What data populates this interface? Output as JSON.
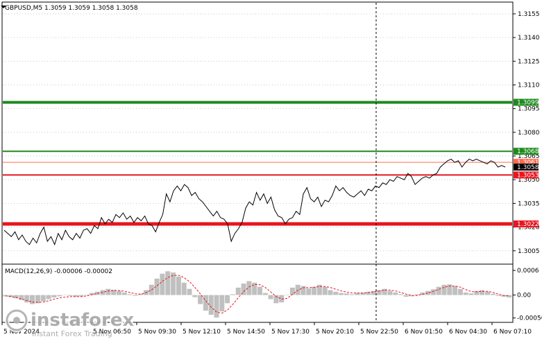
{
  "title": "GBPUSD,M5  1.3059 1.3059 1.3058 1.3058",
  "colors": {
    "price_line": "#000000",
    "support_green": "#1e8a1e",
    "resistance_red": "#e8141e",
    "level_thin_red": "#ff6a50",
    "grid": "#c8c8c8",
    "macd_hist": "#c0c0c0",
    "macd_signal": "#e8141e",
    "axis": "#000000"
  },
  "chart_data": [
    {
      "type": "line",
      "symbol": "GBPUSD",
      "timeframe": "M5",
      "ohlc": {
        "open": 1.3059,
        "high": 1.3059,
        "low": 1.3058,
        "close": 1.3058
      },
      "ylim": [
        1.2997,
        1.3162
      ],
      "y_ticks": [
        "1.3155",
        "1.3140",
        "1.3125",
        "1.3110",
        "1.3095",
        "1.3080",
        "1.3065",
        "1.3050",
        "1.3035",
        "1.3020",
        "1.3005"
      ],
      "x_ticks": [
        "5 Nov 2024",
        "5 Nov 06:50",
        "5 Nov 09:30",
        "5 Nov 12:10",
        "5 Nov 14:50",
        "5 Nov 17:30",
        "5 Nov 20:10",
        "5 Nov 22:50",
        "6 Nov 01:50",
        "6 Nov 04:30",
        "6 Nov 07:10"
      ],
      "horizontal_levels": [
        {
          "value": 1.3099,
          "label": "1.3099",
          "style": "thick-green"
        },
        {
          "value": 1.3068,
          "label": "1.3068",
          "style": "green"
        },
        {
          "value": 1.3061,
          "label": "1.3061",
          "style": "thin-red"
        },
        {
          "value": 1.3053,
          "label": "1.3053",
          "style": "red"
        },
        {
          "value": 1.3022,
          "label": "1.3022",
          "style": "thick-red"
        }
      ],
      "current_price": {
        "value": 1.3058,
        "label": "1.3058"
      },
      "series": [
        {
          "values": [
            1.3018,
            1.3016,
            1.3014,
            1.3017,
            1.3012,
            1.3015,
            1.3011,
            1.3009,
            1.3013,
            1.301,
            1.3016,
            1.302,
            1.3011,
            1.3014,
            1.3009,
            1.3016,
            1.3012,
            1.3018,
            1.3014,
            1.3012,
            1.3016,
            1.3013,
            1.3018,
            1.3019,
            1.3016,
            1.3021,
            1.3019,
            1.3026,
            1.3022,
            1.3025,
            1.3023,
            1.3028,
            1.3026,
            1.3029,
            1.3025,
            1.3027,
            1.3023,
            1.3026,
            1.3024,
            1.3027,
            1.3022,
            1.3021,
            1.3017,
            1.3023,
            1.3028,
            1.3041,
            1.3036,
            1.3043,
            1.3046,
            1.3043,
            1.3047,
            1.3045,
            1.304,
            1.3042,
            1.3038,
            1.3036,
            1.3033,
            1.303,
            1.3027,
            1.303,
            1.3026,
            1.3025,
            1.3022,
            1.3011,
            1.3016,
            1.3019,
            1.3023,
            1.3032,
            1.3036,
            1.3034,
            1.3042,
            1.3037,
            1.3041,
            1.3035,
            1.3039,
            1.3031,
            1.3027,
            1.3026,
            1.3022,
            1.3025,
            1.3026,
            1.303,
            1.3028,
            1.3041,
            1.3045,
            1.3038,
            1.3036,
            1.3039,
            1.3033,
            1.3037,
            1.3036,
            1.304,
            1.3046,
            1.3043,
            1.3045,
            1.3042,
            1.304,
            1.3039,
            1.3041,
            1.3043,
            1.304,
            1.3044,
            1.3043,
            1.3046,
            1.3045,
            1.3048,
            1.3047,
            1.305,
            1.3049,
            1.3052,
            1.3051,
            1.305,
            1.3054,
            1.3052,
            1.3047,
            1.3049,
            1.3051,
            1.3052,
            1.3051,
            1.3053,
            1.3054,
            1.3058,
            1.306,
            1.3062,
            1.3063,
            1.3061,
            1.3062,
            1.3058,
            1.3061,
            1.3063,
            1.3062,
            1.3063,
            1.3062,
            1.3061,
            1.306,
            1.3062,
            1.3061,
            1.3058,
            1.3059,
            1.3058
          ]
        }
      ]
    },
    {
      "type": "bar",
      "title": "MACD(12,26,9) -0.00006 -0.00002",
      "ylim": [
        -0.00065,
        0.00072
      ],
      "y_ticks": [
        "0.0006",
        "0.00",
        "-0.00056"
      ],
      "x_ticks": [
        "5 Nov 2024",
        "5 Nov 06:50",
        "5 Nov 09:30",
        "5 Nov 12:10",
        "5 Nov 14:50",
        "5 Nov 17:30",
        "5 Nov 20:10",
        "5 Nov 22:50",
        "6 Nov 01:50",
        "6 Nov 04:30",
        "6 Nov 07:10"
      ],
      "series": [
        {
          "style": "histogram",
          "values": [
            -3e-05,
            -5e-05,
            -8e-05,
            -0.00012,
            -0.00018,
            -0.00022,
            -0.0002,
            -0.00015,
            -0.0001,
            -6e-05,
            -3e-05,
            0.0,
            -2e-05,
            -4e-05,
            -3e-05,
            1e-05,
            5e-05,
            8e-05,
            0.00012,
            0.00015,
            0.00013,
            0.0001,
            6e-05,
            2e-05,
            -2e-05,
            3e-05,
            0.00012,
            0.00025,
            0.0004,
            0.00052,
            0.00058,
            0.00055,
            0.00045,
            0.0003,
            0.00015,
            -5e-05,
            -0.00022,
            -0.00038,
            -0.00048,
            -0.00055,
            -0.0004,
            -0.0002,
            2e-05,
            0.00018,
            0.00028,
            0.00034,
            0.0003,
            0.0002,
            5e-05,
            -0.0001,
            -0.0002,
            -0.00018,
            0.0,
            0.00018,
            0.00025,
            0.00022,
            0.00016,
            0.0002,
            0.00025,
            0.0002,
            0.00012,
            8e-05,
            5e-05,
            4e-05,
            2e-05,
            5e-05,
            6e-05,
            8e-05,
            0.0001,
            0.00012,
            0.00015,
            0.0001,
            6e-05,
            2e-05,
            -4e-05,
            -3e-05,
            2e-05,
            6e-05,
            0.0001,
            0.00014,
            0.0002,
            0.00025,
            0.00026,
            0.00022,
            0.00015,
            6e-05,
            4e-05,
            0.0001,
            0.00012,
            8e-05,
            3e-05,
            -2e-05,
            -4e-05,
            -6e-05
          ]
        },
        {
          "style": "signal",
          "values": [
            -2e-05,
            -4e-05,
            -6e-05,
            -0.0001,
            -0.00014,
            -0.00017,
            -0.00018,
            -0.00017,
            -0.00014,
            -0.0001,
            -7e-05,
            -5e-05,
            -4e-05,
            -4e-05,
            -4e-05,
            -2e-05,
            1e-05,
            4e-05,
            7e-05,
            0.0001,
            0.00011,
            0.00011,
            9e-05,
            6e-05,
            3e-05,
            2e-05,
            6e-05,
            0.00013,
            0.00023,
            0.00034,
            0.00043,
            0.00048,
            0.00048,
            0.00042,
            0.00032,
            0.00018,
            2e-05,
            -0.00015,
            -0.0003,
            -0.00042,
            -0.00044,
            -0.00036,
            -0.00022,
            -6e-05,
            9e-05,
            0.0002,
            0.00026,
            0.00025,
            0.00018,
            7e-05,
            -4e-05,
            -0.0001,
            -8e-05,
            2e-05,
            0.00012,
            0.00018,
            0.00018,
            0.00019,
            0.00021,
            0.00021,
            0.00018,
            0.00014,
            0.0001,
            7e-05,
            5e-05,
            5e-05,
            5e-05,
            6e-05,
            8e-05,
            0.0001,
            0.00012,
            0.00012,
            0.0001,
            6e-05,
            2e-05,
            -1e-05,
            -1e-05,
            2e-05,
            5e-05,
            9e-05,
            0.00014,
            0.00019,
            0.00022,
            0.00022,
            0.00019,
            0.00013,
            8e-05,
            8e-05,
            9e-05,
            9e-05,
            6e-05,
            2e-05,
            -1e-05,
            -2e-05
          ]
        }
      ]
    }
  ],
  "watermark": {
    "brand": "instaforex",
    "tagline": "Instant Forex Trading"
  }
}
